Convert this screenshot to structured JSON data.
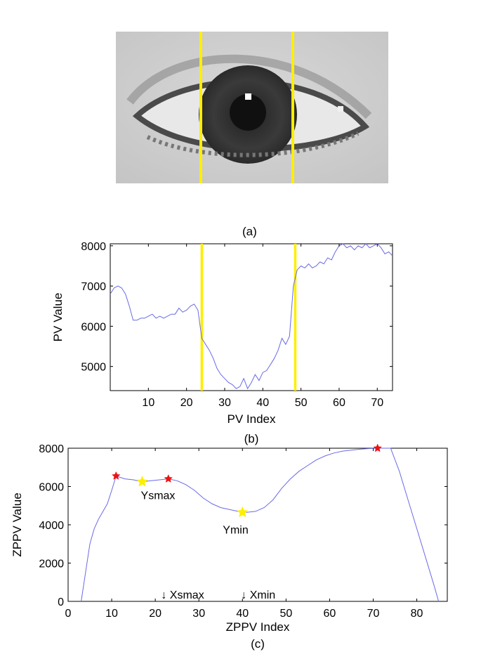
{
  "panel_labels": {
    "a": "(a)",
    "b": "(b)",
    "c": "(c)"
  },
  "chart_data": [
    {
      "type": "line",
      "panel": "(b)",
      "xlabel": "PV Index",
      "ylabel": "PV Value",
      "xlim": [
        0,
        74
      ],
      "ylim": [
        4400,
        8050
      ],
      "xticks": [
        10,
        20,
        30,
        40,
        50,
        60,
        70
      ],
      "yticks": [
        5000,
        6000,
        7000,
        8000
      ],
      "grid": false,
      "vertical_markers": [
        24,
        48.5
      ],
      "marker_color": "#ffee00",
      "line_color": "#6a6ae8",
      "series": [
        {
          "x": [
            0,
            1,
            2,
            3,
            4,
            5,
            6,
            7,
            8,
            9,
            10,
            11,
            12,
            13,
            14,
            15,
            16,
            17,
            18,
            19,
            20,
            21,
            22,
            23,
            24,
            25,
            26,
            27,
            28,
            29,
            30,
            31,
            32,
            33,
            34,
            35,
            36,
            37,
            38,
            39,
            40,
            41,
            42,
            43,
            44,
            45,
            46,
            47,
            48,
            49,
            50,
            51,
            52,
            53,
            54,
            55,
            56,
            57,
            58,
            59,
            60,
            61,
            62,
            63,
            64,
            65,
            66,
            67,
            68,
            69,
            70,
            71,
            72,
            73,
            74
          ],
          "y": [
            6800,
            6950,
            7000,
            6950,
            6800,
            6500,
            6150,
            6150,
            6200,
            6200,
            6250,
            6300,
            6200,
            6250,
            6200,
            6250,
            6300,
            6300,
            6450,
            6350,
            6400,
            6500,
            6550,
            6400,
            5700,
            5550,
            5400,
            5200,
            4950,
            4800,
            4700,
            4600,
            4550,
            4450,
            4500,
            4700,
            4450,
            4600,
            4800,
            4650,
            4850,
            4900,
            5050,
            5200,
            5400,
            5700,
            5550,
            5750,
            7000,
            7400,
            7500,
            7450,
            7550,
            7450,
            7500,
            7600,
            7550,
            7700,
            7650,
            7850,
            8000,
            8050,
            7950,
            8000,
            7900,
            8000,
            7950,
            8050,
            7950,
            8000,
            8050,
            7950,
            7800,
            7850,
            7750
          ]
        }
      ]
    },
    {
      "type": "line",
      "panel": "(c)",
      "xlabel": "ZPPV Index",
      "ylabel": "ZPPV Value",
      "xlim": [
        0,
        87
      ],
      "ylim": [
        0,
        8000
      ],
      "xticks": [
        0,
        10,
        20,
        30,
        40,
        50,
        60,
        70,
        80
      ],
      "yticks": [
        0,
        2000,
        4000,
        6000,
        8000
      ],
      "grid": false,
      "line_color": "#6a6ae8",
      "series": [
        {
          "x": [
            3,
            4,
            5,
            6,
            7,
            8,
            9,
            10,
            11,
            13,
            15,
            17,
            19,
            21,
            23,
            25,
            27,
            29,
            31,
            33,
            35,
            37,
            39,
            41,
            43,
            45,
            47,
            49,
            51,
            53,
            55,
            57,
            59,
            61,
            63,
            65,
            67,
            69,
            71,
            73,
            74,
            76,
            78,
            80,
            82,
            84,
            85
          ],
          "y": [
            0,
            1500,
            3000,
            3800,
            4300,
            4700,
            5100,
            5800,
            6550,
            6400,
            6350,
            6250,
            6300,
            6350,
            6400,
            6300,
            6100,
            5800,
            5400,
            5100,
            4900,
            4800,
            4700,
            4650,
            4700,
            4900,
            5300,
            5900,
            6400,
            6800,
            7100,
            7400,
            7600,
            7750,
            7850,
            7900,
            7950,
            7980,
            8000,
            8000,
            8000,
            6800,
            5300,
            3800,
            2300,
            800,
            0
          ]
        }
      ],
      "markers": {
        "red": [
          {
            "x": 11,
            "y": 6550
          },
          {
            "x": 23,
            "y": 6400
          },
          {
            "x": 71,
            "y": 8000
          }
        ],
        "yellow": [
          {
            "x": 17,
            "y": 6250
          },
          {
            "x": 40,
            "y": 4650
          }
        ],
        "red_color": "#ee1111",
        "yellow_color": "#ffee00"
      },
      "annotations": {
        "ysmax": {
          "text": "Ysmax",
          "x": 17,
          "y": 6250
        },
        "ymin": {
          "text": "Ymin",
          "x": 40,
          "y": 4650
        },
        "xsmax": {
          "text": "↓ Xsmax",
          "x": 21
        },
        "xmin": {
          "text": "↓ Xmin",
          "x": 40
        }
      }
    }
  ]
}
